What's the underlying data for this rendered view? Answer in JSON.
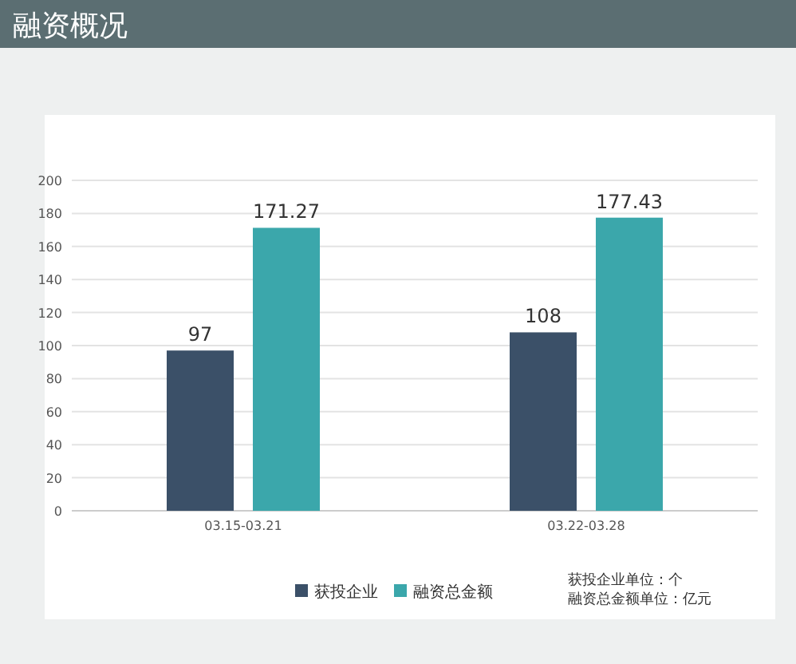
{
  "chart_data": {
    "type": "bar",
    "title": "融资概况",
    "categories": [
      "03.15-03.21",
      "03.22-03.28"
    ],
    "series": [
      {
        "name": "获投企业",
        "color": "#3b5068",
        "values": [
          97,
          108
        ]
      },
      {
        "name": "融资总金额",
        "color": "#3ba7ab",
        "values": [
          171.27,
          177.43
        ]
      }
    ],
    "ylim": [
      0,
      200
    ],
    "yticks": [
      0,
      20,
      40,
      60,
      80,
      100,
      120,
      140,
      160,
      180,
      200
    ],
    "grid": "y",
    "legend": "bottom",
    "data_labels": true,
    "annotations": [
      "获投企业单位：个",
      "融资总金额单位：亿元"
    ]
  }
}
